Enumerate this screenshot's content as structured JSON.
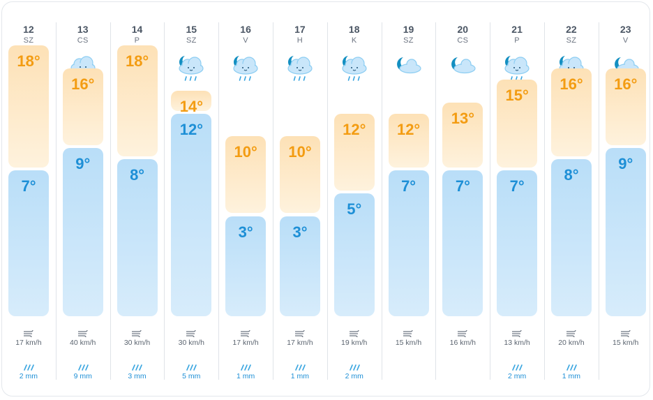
{
  "colors": {
    "high_text": "#f39c12",
    "low_text": "#1d8fd6",
    "high_bar": "#fde1b6",
    "low_bar": "#b9def8",
    "separator": "#dfe3e8"
  },
  "days": [
    {
      "date": "12",
      "weekday": "SZ",
      "icon": "cloud-rain-moon-icon",
      "high": "18°",
      "low": "7°",
      "high_val": 18,
      "low_val": 7,
      "wind": "17 km/h",
      "rain": "2 mm"
    },
    {
      "date": "13",
      "weekday": "CS",
      "icon": "cloud-rain-icon",
      "high": "16°",
      "low": "9°",
      "high_val": 16,
      "low_val": 9,
      "wind": "40 km/h",
      "rain": "9 mm"
    },
    {
      "date": "14",
      "weekday": "P",
      "icon": "cloud-rain-moon-icon",
      "high": "18°",
      "low": "8°",
      "high_val": 18,
      "low_val": 8,
      "wind": "30 km/h",
      "rain": "3 mm"
    },
    {
      "date": "15",
      "weekday": "SZ",
      "icon": "cloud-rain-moon-icon",
      "high": "14°",
      "low": "12°",
      "high_val": 14,
      "low_val": 12,
      "wind": "30 km/h",
      "rain": "5 mm"
    },
    {
      "date": "16",
      "weekday": "V",
      "icon": "cloud-rain-moon-icon",
      "high": "10°",
      "low": "3°",
      "high_val": 10,
      "low_val": 3,
      "wind": "17 km/h",
      "rain": "1 mm"
    },
    {
      "date": "17",
      "weekday": "H",
      "icon": "cloud-rain-moon-icon",
      "high": "10°",
      "low": "3°",
      "high_val": 10,
      "low_val": 3,
      "wind": "17 km/h",
      "rain": "1 mm"
    },
    {
      "date": "18",
      "weekday": "K",
      "icon": "cloud-rain-moon-icon",
      "high": "12°",
      "low": "5°",
      "high_val": 12,
      "low_val": 5,
      "wind": "19 km/h",
      "rain": "2 mm"
    },
    {
      "date": "19",
      "weekday": "SZ",
      "icon": "moon-cloud-icon",
      "high": "12°",
      "low": "7°",
      "high_val": 12,
      "low_val": 7,
      "wind": "15 km/h",
      "rain": ""
    },
    {
      "date": "20",
      "weekday": "CS",
      "icon": "moon-cloud-icon",
      "high": "13°",
      "low": "7°",
      "high_val": 13,
      "low_val": 7,
      "wind": "16 km/h",
      "rain": ""
    },
    {
      "date": "21",
      "weekday": "P",
      "icon": "cloud-rain-moon-icon",
      "high": "15°",
      "low": "7°",
      "high_val": 15,
      "low_val": 7,
      "wind": "13 km/h",
      "rain": "2 mm"
    },
    {
      "date": "22",
      "weekday": "SZ",
      "icon": "cloud-rain-moon-icon",
      "high": "16°",
      "low": "8°",
      "high_val": 16,
      "low_val": 8,
      "wind": "20 km/h",
      "rain": "1 mm"
    },
    {
      "date": "23",
      "weekday": "V",
      "icon": "moon-cloud-icon",
      "high": "16°",
      "low": "9°",
      "high_val": 16,
      "low_val": 9,
      "wind": "15 km/h",
      "rain": ""
    }
  ]
}
